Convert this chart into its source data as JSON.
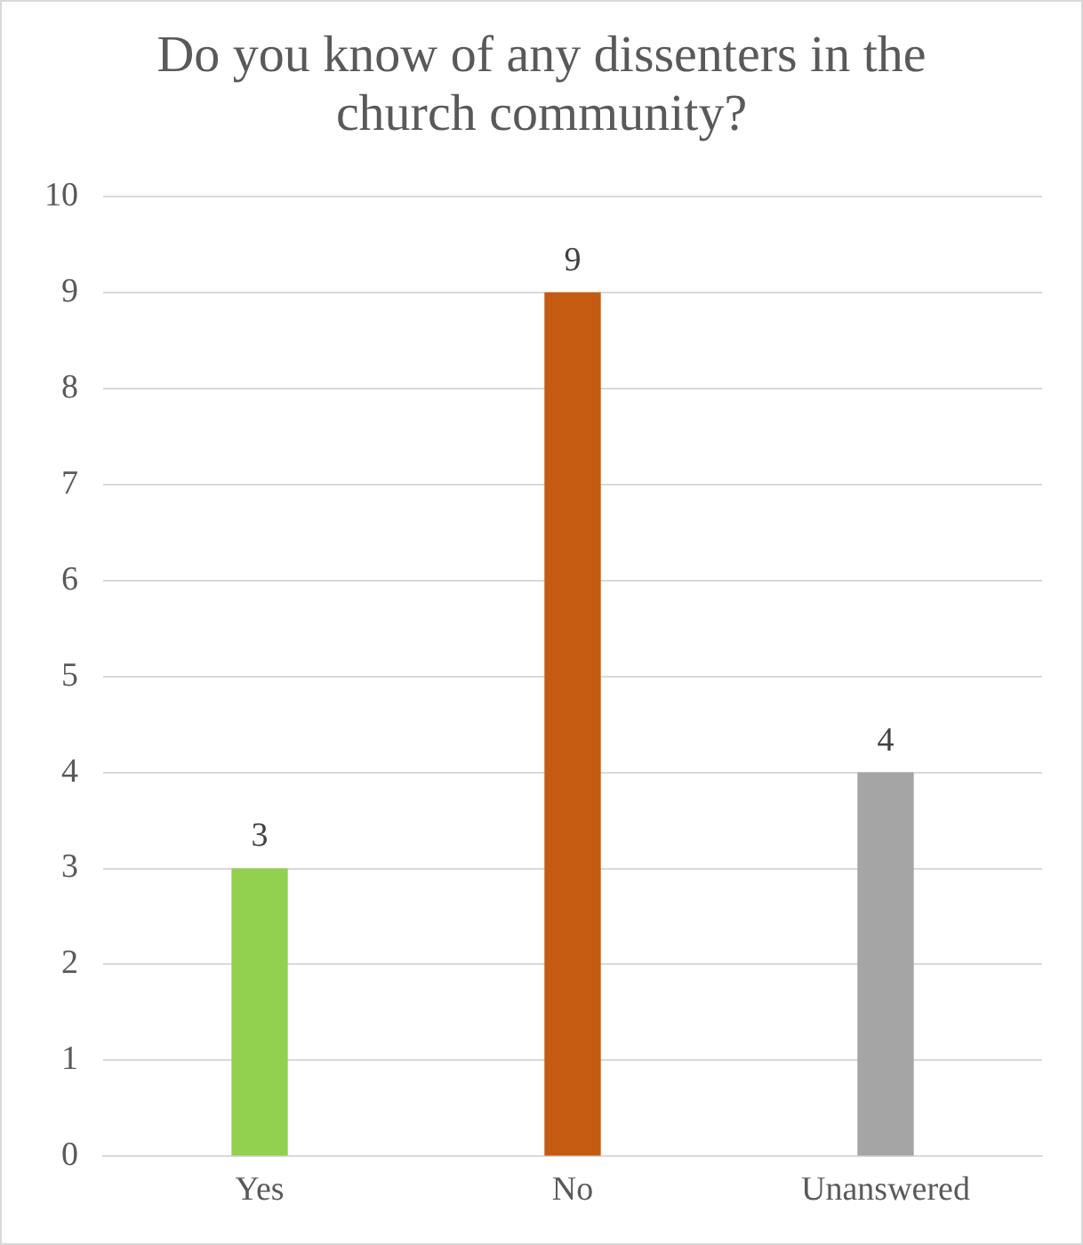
{
  "chart_data": {
    "type": "bar",
    "title": "Do you know of any dissenters in the church community?",
    "categories": [
      "Yes",
      "No",
      "Unanswered"
    ],
    "values": [
      3,
      9,
      4
    ],
    "colors": [
      "#92d050",
      "#c55a11",
      "#a5a5a5"
    ],
    "ylim": [
      0,
      10
    ],
    "yticks": [
      0,
      1,
      2,
      3,
      4,
      5,
      6,
      7,
      8,
      9,
      10
    ],
    "grid": "y",
    "data_labels": true
  }
}
